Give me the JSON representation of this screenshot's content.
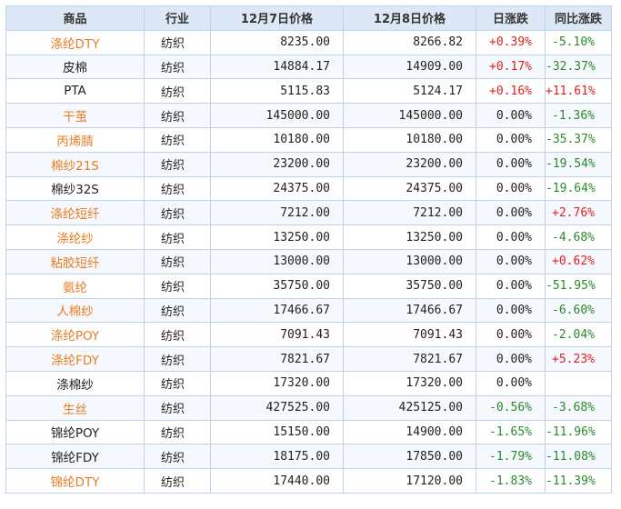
{
  "colors": {
    "link": "#e87d22",
    "plain": "#222222",
    "up": "#e02020",
    "down": "#2a8a2a",
    "flat": "#222222",
    "header_bg": "#dce8f5",
    "border": "#bfd2e6"
  },
  "headers": [
    "商品",
    "行业",
    "12月7日价格",
    "12月8日价格",
    "日涨跌",
    "同比涨跌"
  ],
  "rows": [
    {
      "name": "涤纶DTY",
      "link": true,
      "industry": "纺织",
      "p1": "8235.00",
      "p2": "8266.82",
      "day": "+0.39%",
      "day_dir": "up",
      "yoy": "-5.10%",
      "yoy_dir": "down"
    },
    {
      "name": "皮棉",
      "link": false,
      "industry": "纺织",
      "p1": "14884.17",
      "p2": "14909.00",
      "day": "+0.17%",
      "day_dir": "up",
      "yoy": "-32.37%",
      "yoy_dir": "down"
    },
    {
      "name": "PTA",
      "link": false,
      "industry": "纺织",
      "p1": "5115.83",
      "p2": "5124.17",
      "day": "+0.16%",
      "day_dir": "up",
      "yoy": "+11.61%",
      "yoy_dir": "up"
    },
    {
      "name": "干茧",
      "link": true,
      "industry": "纺织",
      "p1": "145000.00",
      "p2": "145000.00",
      "day": "0.00%",
      "day_dir": "flat",
      "yoy": "-1.36%",
      "yoy_dir": "down"
    },
    {
      "name": "丙烯腈",
      "link": true,
      "industry": "纺织",
      "p1": "10180.00",
      "p2": "10180.00",
      "day": "0.00%",
      "day_dir": "flat",
      "yoy": "-35.37%",
      "yoy_dir": "down"
    },
    {
      "name": "棉纱21S",
      "link": true,
      "industry": "纺织",
      "p1": "23200.00",
      "p2": "23200.00",
      "day": "0.00%",
      "day_dir": "flat",
      "yoy": "-19.54%",
      "yoy_dir": "down"
    },
    {
      "name": "棉纱32S",
      "link": false,
      "industry": "纺织",
      "p1": "24375.00",
      "p2": "24375.00",
      "day": "0.00%",
      "day_dir": "flat",
      "yoy": "-19.64%",
      "yoy_dir": "down"
    },
    {
      "name": "涤纶短纤",
      "link": true,
      "industry": "纺织",
      "p1": "7212.00",
      "p2": "7212.00",
      "day": "0.00%",
      "day_dir": "flat",
      "yoy": "+2.76%",
      "yoy_dir": "up"
    },
    {
      "name": "涤纶纱",
      "link": true,
      "industry": "纺织",
      "p1": "13250.00",
      "p2": "13250.00",
      "day": "0.00%",
      "day_dir": "flat",
      "yoy": "-4.68%",
      "yoy_dir": "down"
    },
    {
      "name": "粘胶短纤",
      "link": true,
      "industry": "纺织",
      "p1": "13000.00",
      "p2": "13000.00",
      "day": "0.00%",
      "day_dir": "flat",
      "yoy": "+0.62%",
      "yoy_dir": "up"
    },
    {
      "name": "氨纶",
      "link": true,
      "industry": "纺织",
      "p1": "35750.00",
      "p2": "35750.00",
      "day": "0.00%",
      "day_dir": "flat",
      "yoy": "-51.95%",
      "yoy_dir": "down"
    },
    {
      "name": "人棉纱",
      "link": true,
      "industry": "纺织",
      "p1": "17466.67",
      "p2": "17466.67",
      "day": "0.00%",
      "day_dir": "flat",
      "yoy": "-6.60%",
      "yoy_dir": "down"
    },
    {
      "name": "涤纶POY",
      "link": true,
      "industry": "纺织",
      "p1": "7091.43",
      "p2": "7091.43",
      "day": "0.00%",
      "day_dir": "flat",
      "yoy": "-2.04%",
      "yoy_dir": "down"
    },
    {
      "name": "涤纶FDY",
      "link": true,
      "industry": "纺织",
      "p1": "7821.67",
      "p2": "7821.67",
      "day": "0.00%",
      "day_dir": "flat",
      "yoy": "+5.23%",
      "yoy_dir": "up"
    },
    {
      "name": "涤棉纱",
      "link": false,
      "industry": "纺织",
      "p1": "17320.00",
      "p2": "17320.00",
      "day": "0.00%",
      "day_dir": "flat",
      "yoy": "",
      "yoy_dir": "flat"
    },
    {
      "name": "生丝",
      "link": true,
      "industry": "纺织",
      "p1": "427525.00",
      "p2": "425125.00",
      "day": "-0.56%",
      "day_dir": "down",
      "yoy": "-3.68%",
      "yoy_dir": "down"
    },
    {
      "name": "锦纶POY",
      "link": false,
      "industry": "纺织",
      "p1": "15150.00",
      "p2": "14900.00",
      "day": "-1.65%",
      "day_dir": "down",
      "yoy": "-11.96%",
      "yoy_dir": "down"
    },
    {
      "name": "锦纶FDY",
      "link": false,
      "industry": "纺织",
      "p1": "18175.00",
      "p2": "17850.00",
      "day": "-1.79%",
      "day_dir": "down",
      "yoy": "-11.08%",
      "yoy_dir": "down"
    },
    {
      "name": "锦纶DTY",
      "link": true,
      "industry": "纺织",
      "p1": "17440.00",
      "p2": "17120.00",
      "day": "-1.83%",
      "day_dir": "down",
      "yoy": "-11.39%",
      "yoy_dir": "down"
    }
  ]
}
